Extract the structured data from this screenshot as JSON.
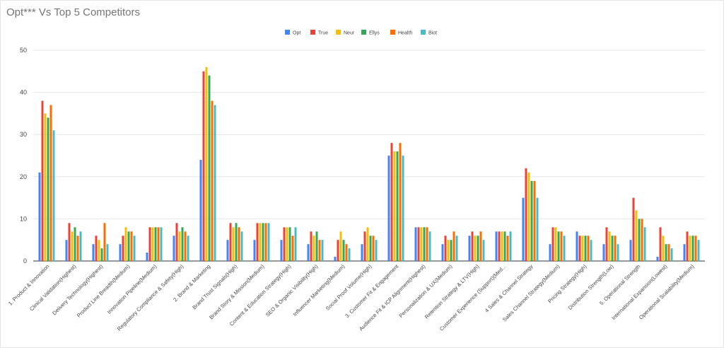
{
  "chart_data": {
    "type": "bar",
    "title": "Opt***  Vs Top 5 Competitors",
    "xlabel": "",
    "ylabel": "",
    "ylim": [
      0,
      50
    ],
    "yticks": [
      0,
      10,
      20,
      30,
      40,
      50
    ],
    "grid": true,
    "legend_position": "top",
    "categories": [
      "1. Product & Innovation",
      "Clinical Validation(Highest)",
      "Delivery Technology(Highest)",
      "Product Line Breadth(Medium)",
      "Innovation Pipeline(Medium)",
      "Regulatory Compliance & Safety(High)",
      "2. Brand & Marketing",
      "Brand Trust Signals(High)",
      "Brand Story & Mission(Medium)",
      "Content & Education Strategy(High)",
      "SEO & Organic Visibility(High)",
      "Influencer Marketing(Medium)",
      "Social Proof Volume(High)",
      "3. Customer Fit & Engagement",
      "Audience Fit & ICP Alignment(Highest)",
      "Personalization & UX(Medium)",
      "Retention Strategy & LTV(High)",
      "Customer Experience (Support)(Med...",
      "4 Sales & Channel Strategy",
      "Sales Channel Strategy(Medium)",
      "Pricing Strategy(High)",
      "Distribution Strength(Low)",
      "5. Operational Strength",
      "International Expansion(Lowest)",
      "Operational Scalability(Medium)"
    ],
    "series": [
      {
        "name": "Opt",
        "color": "#4285f4",
        "values": [
          21,
          5,
          4,
          4,
          2,
          6,
          24,
          5,
          5,
          5,
          4,
          1,
          4,
          25,
          8,
          4,
          6,
          7,
          15,
          4,
          7,
          4,
          5,
          1,
          4
        ]
      },
      {
        "name": "True",
        "color": "#ea4335",
        "values": [
          38,
          9,
          6,
          6,
          8,
          9,
          45,
          9,
          9,
          8,
          7,
          5,
          7,
          28,
          8,
          6,
          7,
          7,
          22,
          8,
          6,
          8,
          15,
          8,
          7
        ]
      },
      {
        "name": "Neur",
        "color": "#fbbc04",
        "values": [
          35,
          7,
          5,
          8,
          8,
          7,
          46,
          8,
          9,
          8,
          6,
          7,
          8,
          26,
          8,
          5,
          6,
          7,
          21,
          8,
          6,
          7,
          12,
          6,
          6
        ]
      },
      {
        "name": "Ellys",
        "color": "#34a853",
        "values": [
          34,
          8,
          3,
          7,
          8,
          8,
          44,
          9,
          9,
          8,
          7,
          5,
          6,
          26,
          8,
          5,
          6,
          7,
          19,
          7,
          6,
          6,
          10,
          4,
          6
        ]
      },
      {
        "name": "Health",
        "color": "#ff6d01",
        "values": [
          37,
          6,
          9,
          7,
          8,
          7,
          38,
          8,
          9,
          6,
          5,
          4,
          6,
          28,
          8,
          7,
          7,
          6,
          19,
          7,
          6,
          6,
          10,
          4,
          6
        ]
      },
      {
        "name": "Biot",
        "color": "#46bdc6",
        "values": [
          31,
          7,
          4,
          6,
          8,
          6,
          37,
          7,
          9,
          8,
          5,
          3,
          5,
          25,
          7,
          6,
          5,
          7,
          15,
          6,
          5,
          4,
          8,
          3,
          5
        ]
      }
    ]
  }
}
